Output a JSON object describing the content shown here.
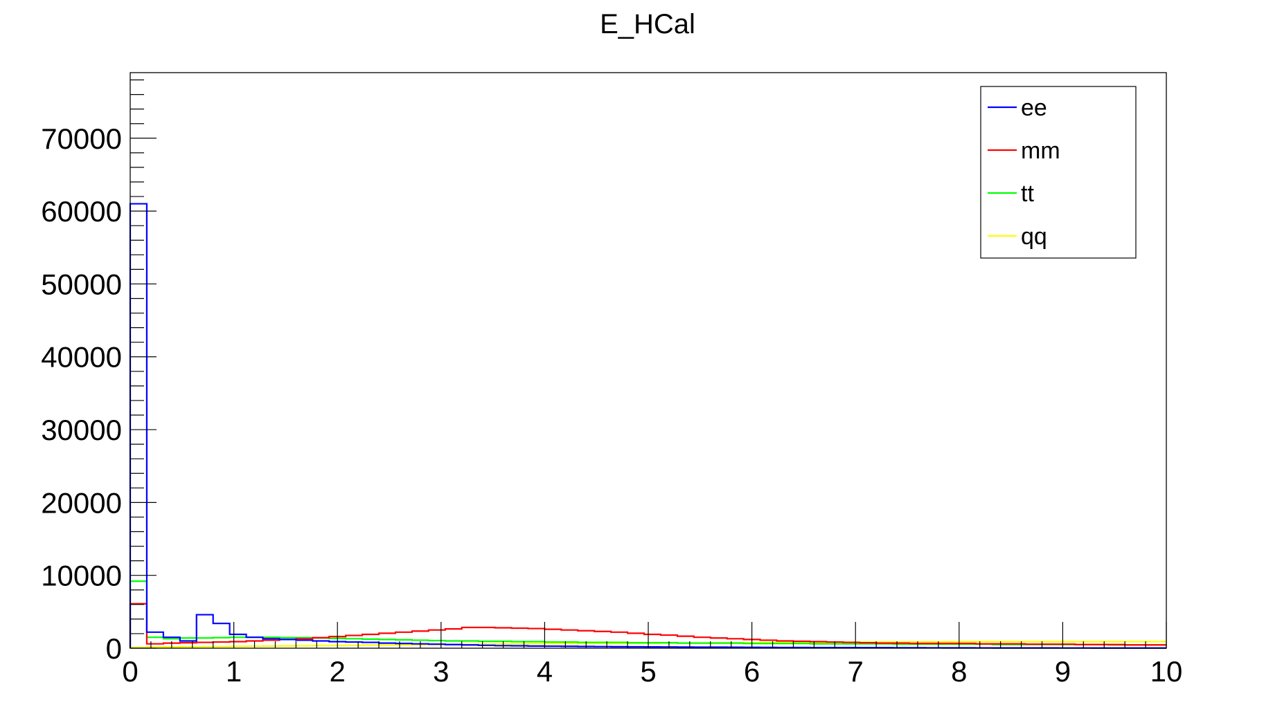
{
  "chart_data": {
    "type": "line",
    "title": "E_HCal",
    "xlabel": "",
    "ylabel": "",
    "xlim": [
      0,
      10
    ],
    "ylim": [
      0,
      79000
    ],
    "bin_width": 0.16,
    "x_tick_labels": [
      "0",
      "1",
      "2",
      "3",
      "4",
      "5",
      "6",
      "7",
      "8",
      "9",
      "10"
    ],
    "y_tick_labels": [
      "0",
      "10000",
      "20000",
      "30000",
      "40000",
      "50000",
      "60000",
      "70000"
    ],
    "grid": false,
    "legend_position": "top-right",
    "series": [
      {
        "name": "ee",
        "color": "#0000ff",
        "values": [
          61000,
          2200,
          1500,
          1000,
          4600,
          3400,
          1900,
          1500,
          1300,
          1200,
          1100,
          1000,
          900,
          850,
          800,
          700,
          650,
          600,
          550,
          500,
          450,
          400,
          350,
          330,
          300,
          280,
          260,
          240,
          220,
          200,
          190,
          180,
          170,
          160,
          150,
          140,
          130,
          120,
          110,
          100,
          95,
          90,
          85,
          80,
          75,
          70,
          65,
          60,
          55,
          50,
          45,
          40,
          38,
          36,
          34,
          32,
          30,
          28,
          26,
          25,
          24,
          23,
          22
        ]
      },
      {
        "name": "mm",
        "color": "#ff0000",
        "values": [
          6100,
          600,
          700,
          750,
          800,
          850,
          900,
          1000,
          1100,
          1200,
          1300,
          1450,
          1600,
          1750,
          1900,
          2050,
          2200,
          2350,
          2500,
          2650,
          2850,
          2850,
          2800,
          2750,
          2700,
          2600,
          2500,
          2400,
          2300,
          2200,
          2050,
          1900,
          1800,
          1650,
          1500,
          1400,
          1300,
          1200,
          1100,
          1000,
          950,
          900,
          850,
          800,
          750,
          700,
          700,
          650,
          650,
          650,
          650,
          600,
          600,
          600,
          550,
          550,
          550,
          500,
          500,
          500,
          450,
          450,
          450
        ]
      },
      {
        "name": "tt",
        "color": "#00ff00",
        "values": [
          9200,
          1500,
          1300,
          1400,
          1400,
          1450,
          1500,
          1500,
          1500,
          1450,
          1450,
          1400,
          1350,
          1300,
          1250,
          1200,
          1150,
          1100,
          1050,
          1000,
          1000,
          950,
          950,
          900,
          900,
          850,
          850,
          800,
          800,
          800,
          750,
          750,
          750,
          700,
          700,
          700,
          700,
          650,
          650,
          650,
          650,
          600,
          600,
          600,
          600,
          600,
          550,
          550,
          550,
          550,
          550,
          550,
          500,
          500,
          500,
          500,
          500,
          500,
          500,
          450,
          450,
          450,
          450
        ]
      },
      {
        "name": "qq",
        "color": "#ffff00",
        "values": [
          100,
          150,
          180,
          200,
          220,
          240,
          260,
          280,
          300,
          320,
          340,
          360,
          380,
          400,
          420,
          440,
          460,
          480,
          500,
          520,
          540,
          560,
          580,
          600,
          620,
          640,
          650,
          660,
          670,
          680,
          690,
          700,
          710,
          720,
          730,
          740,
          750,
          760,
          770,
          780,
          790,
          800,
          810,
          820,
          830,
          840,
          850,
          860,
          870,
          880,
          890,
          900,
          900,
          900,
          900,
          900,
          900,
          900,
          900,
          900,
          900,
          900,
          900
        ]
      }
    ]
  }
}
